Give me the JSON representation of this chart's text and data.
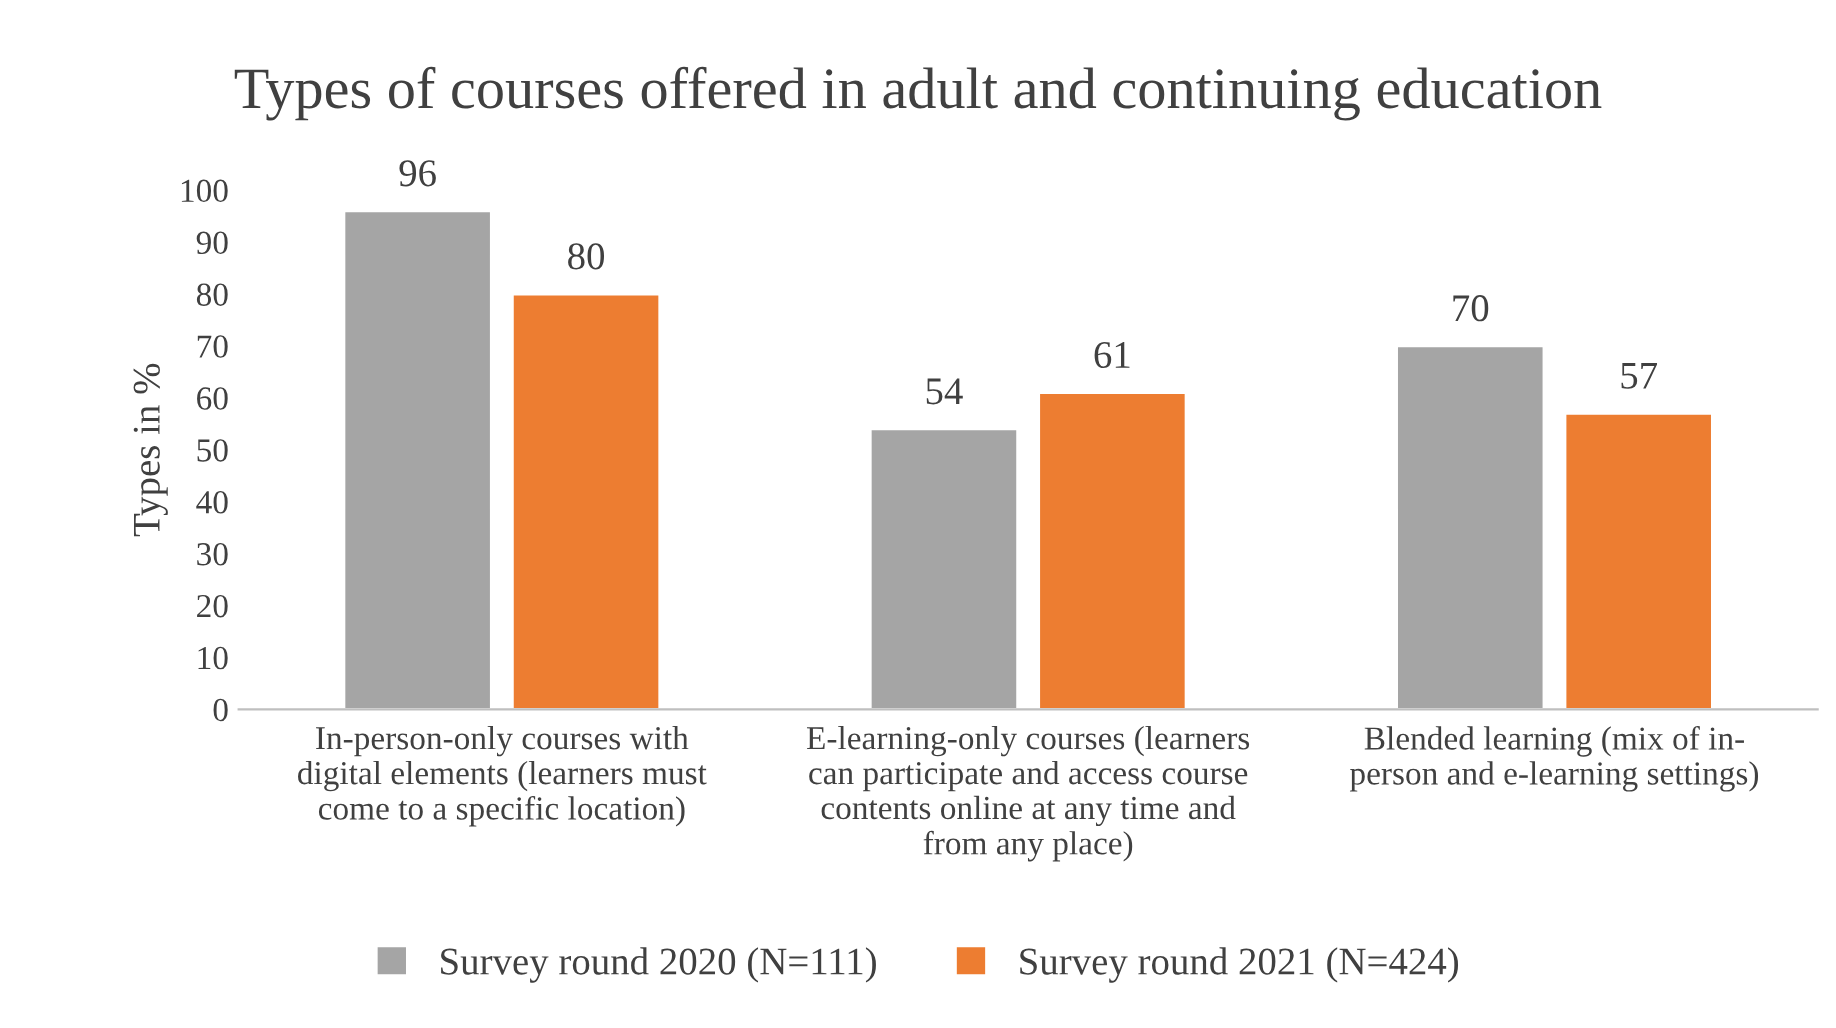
{
  "chart_data": {
    "type": "bar",
    "title": "Types of courses offered in adult and continuing education",
    "ylabel": "Types in %",
    "categories": [
      "In-person-only courses with\ndigital elements (learners must\ncome to a specific location)",
      "E-learning-only courses (learners\ncan participate and access course\ncontents online at any time and\nfrom any place)",
      "Blended learning (mix of in-\nperson and e-learning settings)"
    ],
    "series": [
      {
        "name": "Survey round 2020 (N=111)",
        "color": "#a5a5a5",
        "values": [
          96,
          54,
          70
        ]
      },
      {
        "name": "Survey round 2021 (N=424)",
        "color": "#ed7d31",
        "values": [
          80,
          61,
          57
        ]
      }
    ],
    "ylim": [
      0,
      100
    ],
    "yticks": [
      0,
      10,
      20,
      30,
      40,
      50,
      60,
      70,
      80,
      90,
      100
    ],
    "grid": false,
    "legend": "bottom",
    "data_labels": true
  }
}
